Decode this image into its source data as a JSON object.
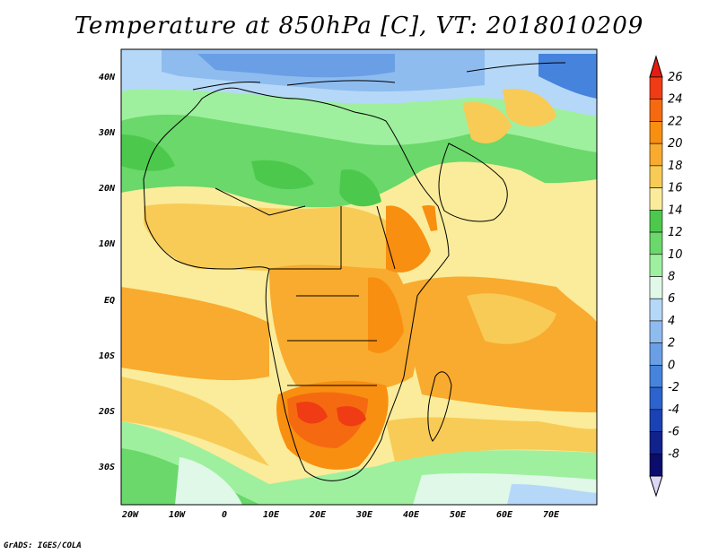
{
  "title": "Temperature at 850hPa [C], VT: 2018010209",
  "credit": "GrADS: IGES/COLA",
  "axes": {
    "x_ticks": [
      "20W",
      "10W",
      "0",
      "10E",
      "20E",
      "30E",
      "40E",
      "50E",
      "60E",
      "70E"
    ],
    "y_ticks": [
      "40N",
      "30N",
      "20N",
      "10N",
      "EQ",
      "10S",
      "20S",
      "30S"
    ]
  },
  "colorbar": {
    "levels": [
      "26",
      "24",
      "22",
      "20",
      "18",
      "16",
      "14",
      "12",
      "10",
      "8",
      "6",
      "4",
      "2",
      "0",
      "-2",
      "-4",
      "-6",
      "-8"
    ],
    "colors": [
      "#f03c14",
      "#f56a10",
      "#f88f10",
      "#f8ab2e",
      "#f8cb56",
      "#faec9a",
      "#4cc94c",
      "#6ad86a",
      "#9ef09e",
      "#dff8e8",
      "#b5d8f8",
      "#8ebcef",
      "#6a9fe6",
      "#4683dc",
      "#2c63cc",
      "#1b42b4",
      "#11228c",
      "#0a0d6c"
    ],
    "top_arrow_color": "#e41c10",
    "bottom_arrow_color": "#dcd8f8"
  }
}
